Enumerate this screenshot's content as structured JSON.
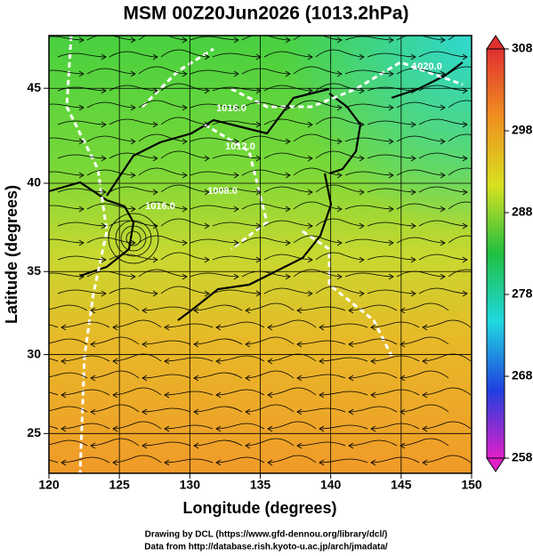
{
  "chart_data": {
    "type": "map",
    "title": "MSM 00Z20Jun2026 (1013.2hPa)",
    "xlabel": "Longitude (degrees)",
    "ylabel": "Latitude  (degrees)",
    "xlim": [
      120,
      150
    ],
    "xticks": [
      120,
      125,
      130,
      135,
      140,
      145,
      150
    ],
    "ylim": [
      22.4,
      47.6
    ],
    "yticks": [
      25,
      30,
      35,
      40,
      45
    ],
    "projection": "mercator",
    "grid": true,
    "colorbar": {
      "lim": [
        258,
        308
      ],
      "ticks": [
        258,
        268,
        278,
        288,
        298,
        308
      ],
      "colors": [
        "#e020c8",
        "#2040e0",
        "#20d8e0",
        "#20c040",
        "#d8e020",
        "#f09020",
        "#e03030"
      ]
    },
    "contour_labels": [
      "1016.0",
      "1012.0",
      "1008.0",
      "1020.0",
      "1016.0"
    ],
    "credits": [
      "Drawing by DCL (https://www.gfd-dennou.org/library/dcl/)",
      "Data from http://database.rish.kyoto-u.ac.jp/arch/jmadata/"
    ]
  }
}
